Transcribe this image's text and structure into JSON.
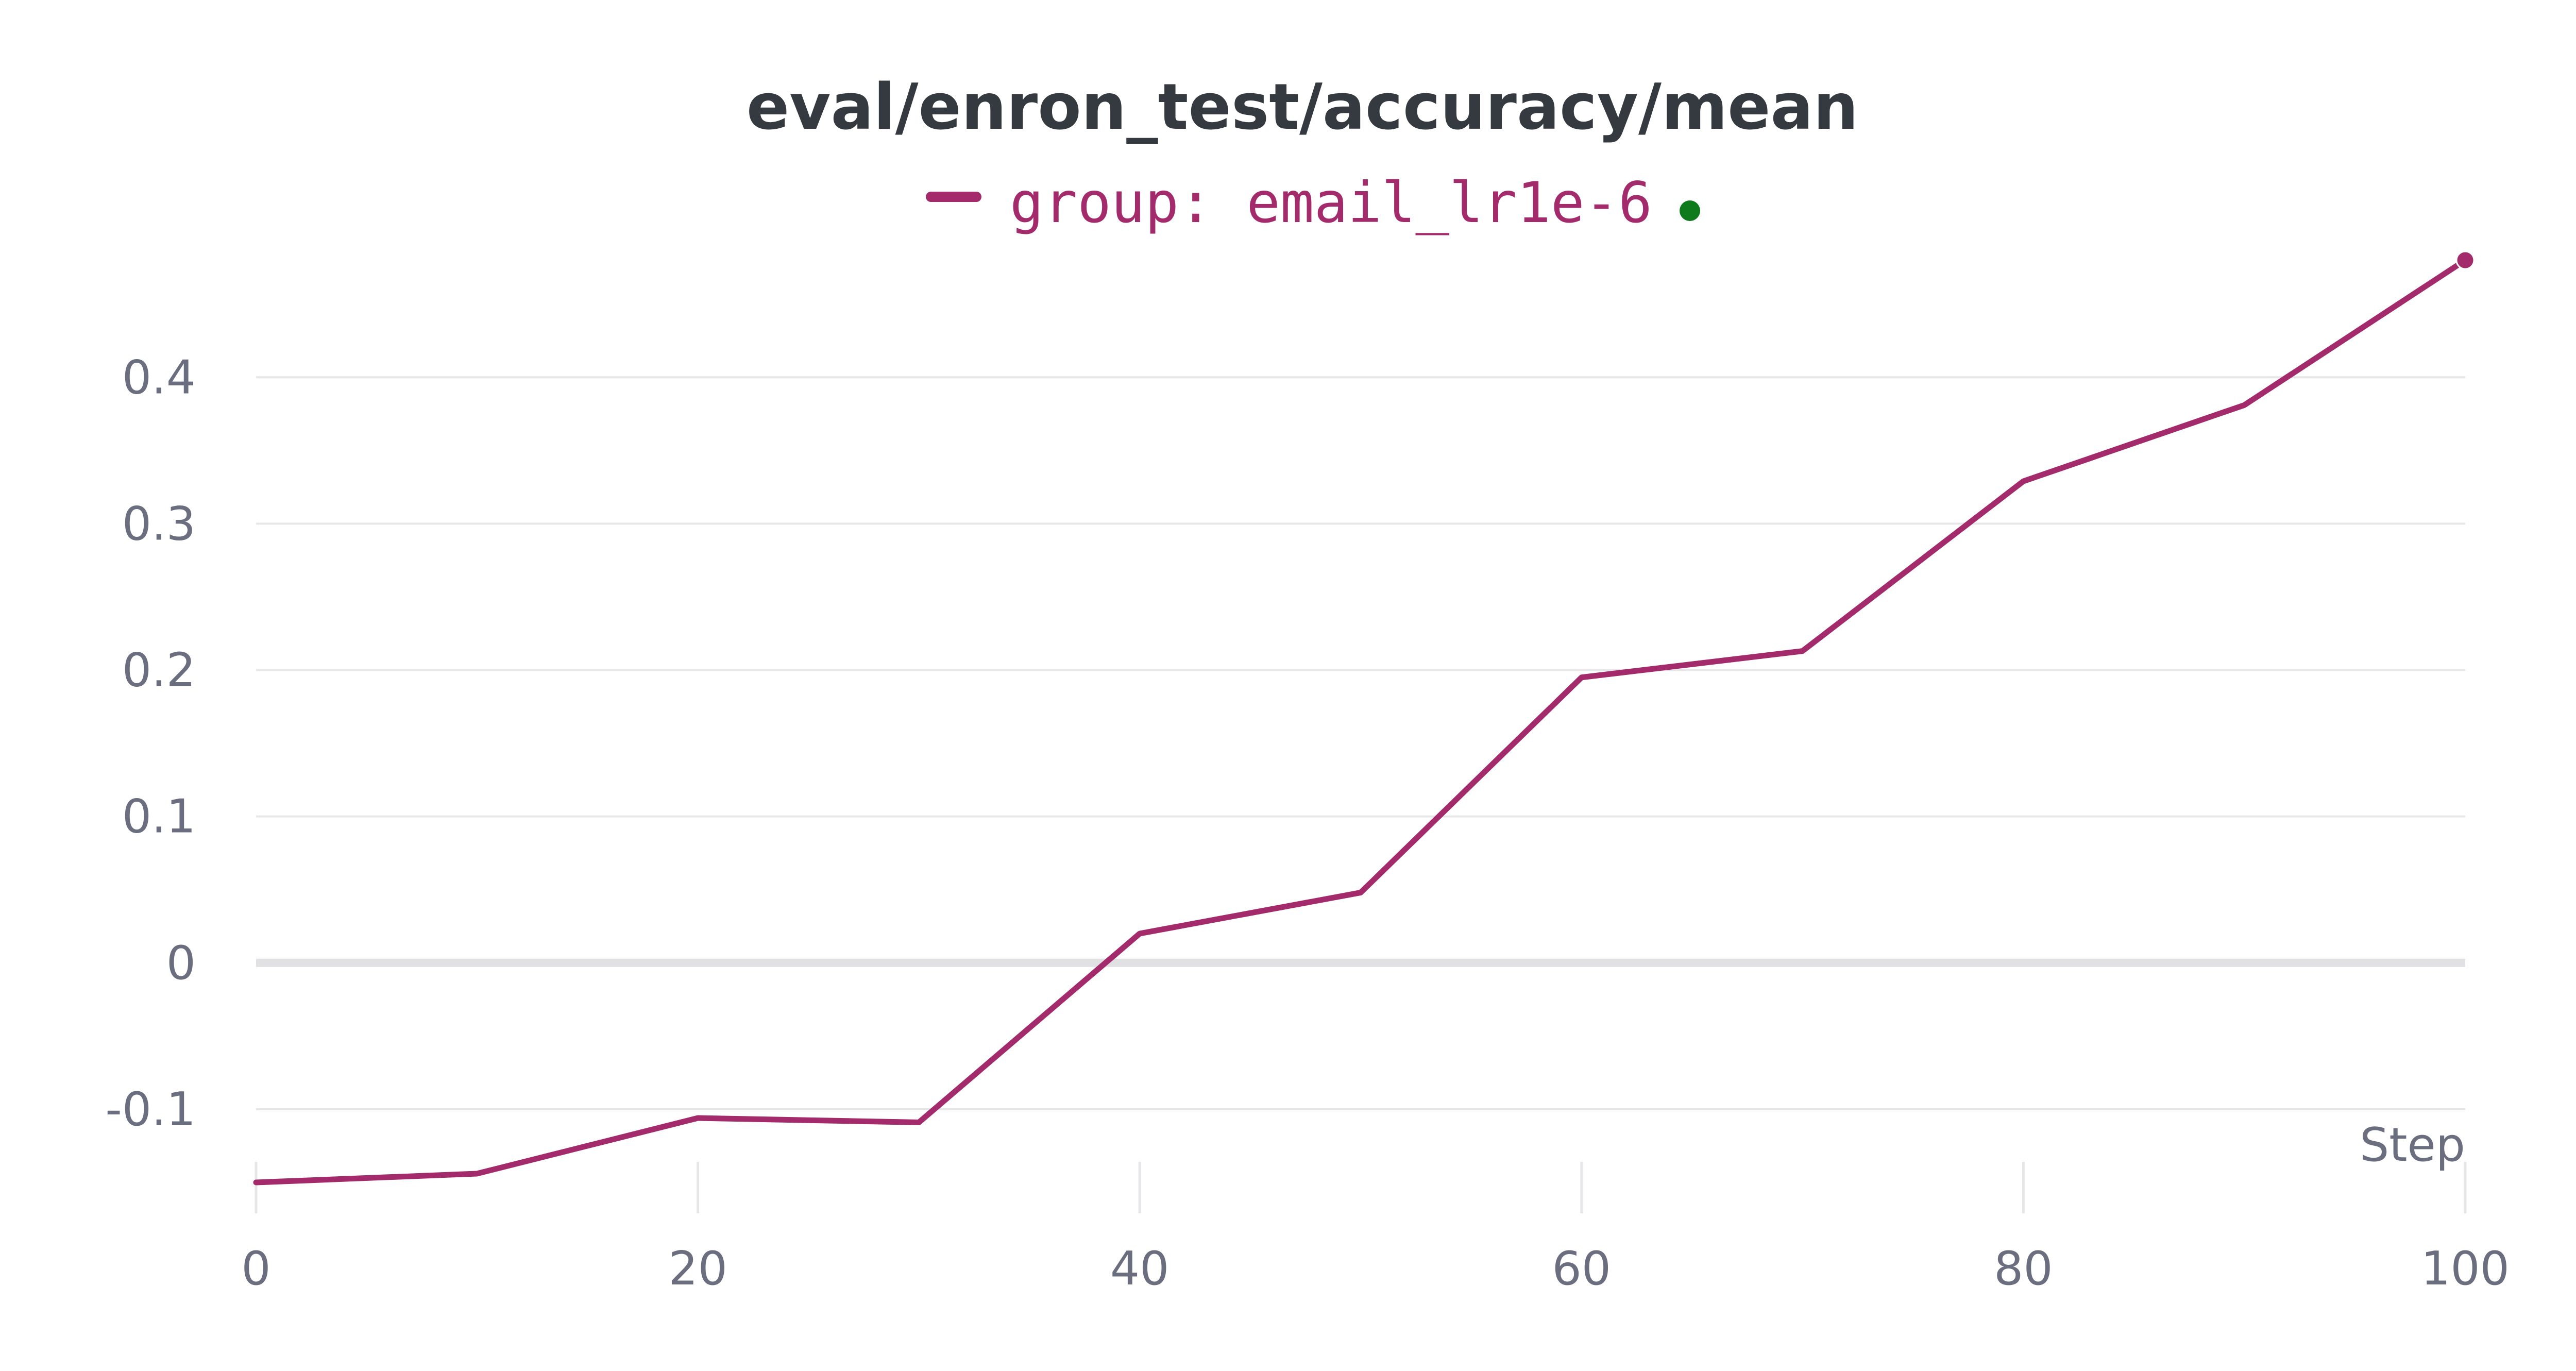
{
  "colors": {
    "series": "#a32a6b",
    "title": "#343a40",
    "tick_text": "#6b6e7e",
    "grid": "#e7e7e9",
    "zero_line": "#e1e1e4",
    "run_status_dot": "#0f7a1c"
  },
  "chart_data": {
    "type": "line",
    "title": "eval/enron_test/accuracy/mean",
    "xlabel": "Step",
    "ylabel": "",
    "xlim": [
      0,
      100
    ],
    "ylim": [
      -0.15,
      0.48
    ],
    "xticks": [
      0,
      20,
      40,
      60,
      80,
      100
    ],
    "xtick_labels": [
      "0",
      "20",
      "40",
      "60",
      "80",
      "100"
    ],
    "yticks": [
      -0.1,
      0,
      0.1,
      0.2,
      0.3,
      0.4
    ],
    "ytick_labels": [
      "-0.1",
      "0",
      "0.1",
      "0.2",
      "0.3",
      "0.4"
    ],
    "grid": true,
    "legend_position": "top-center",
    "series": [
      {
        "name": "group: email_lr1e-6",
        "x": [
          0,
          10,
          20,
          30,
          40,
          50,
          60,
          70,
          80,
          90,
          100
        ],
        "y": [
          -0.15,
          -0.144,
          -0.106,
          -0.109,
          0.02,
          0.048,
          0.195,
          0.213,
          0.329,
          0.381,
          0.48
        ]
      }
    ]
  }
}
